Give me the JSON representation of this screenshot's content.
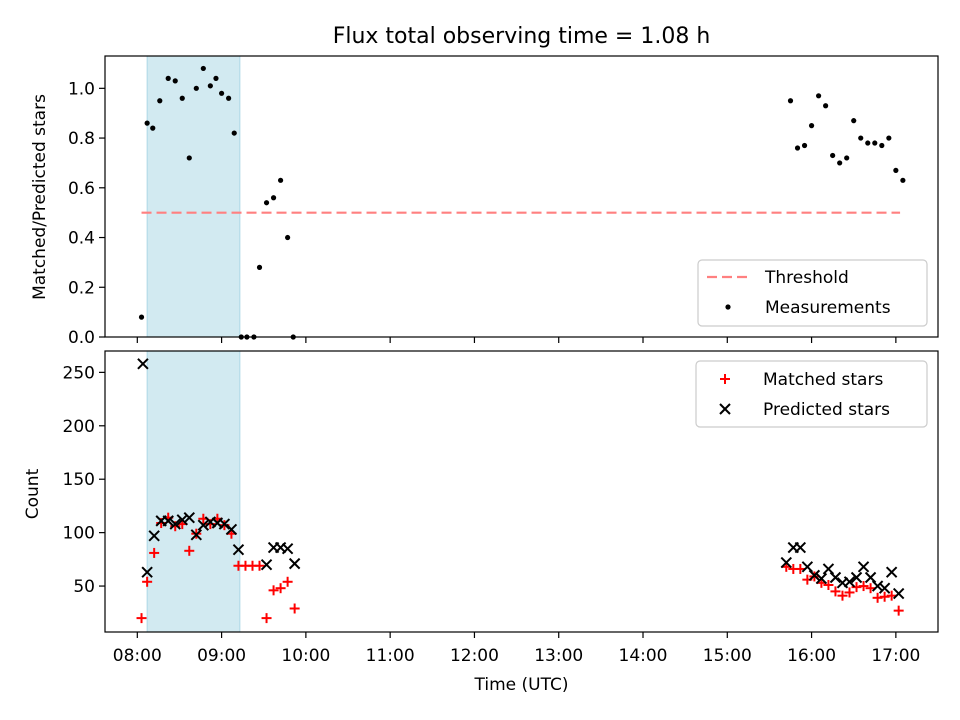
{
  "chart_data": [
    {
      "type": "scatter",
      "title": "Flux total observing time = 1.08 h",
      "ylabel": "Matched/Predicted stars",
      "xlabel": "",
      "xlim": [
        "07:37",
        "17:30"
      ],
      "ylim": [
        0,
        1.13
      ],
      "yticks": [
        0.0,
        0.2,
        0.4,
        0.6,
        0.8,
        1.0
      ],
      "ytick_labels": [
        "0.0",
        "0.2",
        "0.4",
        "0.6",
        "0.8",
        "1.0"
      ],
      "highlight_span": [
        "08:07",
        "09:13"
      ],
      "highlight_color": "#add8e6",
      "threshold": {
        "name": "Threshold",
        "value": 0.5,
        "x_range": [
          "08:03",
          "17:03"
        ],
        "color": "#ff8080"
      },
      "series": [
        {
          "name": "Measurements",
          "color": "#000000",
          "x": [
            "08:03",
            "08:07",
            "08:11",
            "08:16",
            "08:22",
            "08:27",
            "08:32",
            "08:37",
            "08:42",
            "08:47",
            "08:52",
            "08:56",
            "09:00",
            "09:05",
            "09:09",
            "09:14",
            "09:18",
            "09:23",
            "09:27",
            "09:32",
            "09:37",
            "09:42",
            "09:47",
            "09:51",
            "15:45",
            "15:50",
            "15:55",
            "16:00",
            "16:05",
            "16:10",
            "16:15",
            "16:20",
            "16:25",
            "16:30",
            "16:35",
            "16:40",
            "16:45",
            "16:50",
            "16:55",
            "17:00",
            "17:05"
          ],
          "y": [
            0.08,
            0.86,
            0.84,
            0.95,
            1.04,
            1.03,
            0.96,
            0.72,
            1.0,
            1.08,
            1.01,
            1.04,
            0.98,
            0.96,
            0.82,
            0.0,
            0.0,
            0.0,
            0.28,
            0.54,
            0.56,
            0.63,
            0.4,
            0.0,
            0.95,
            0.76,
            0.77,
            0.85,
            0.97,
            0.93,
            0.73,
            0.7,
            0.72,
            0.87,
            0.8,
            0.78,
            0.78,
            0.77,
            0.8,
            0.67,
            0.63
          ]
        }
      ]
    },
    {
      "type": "scatter",
      "title": "",
      "xlabel": "Time (UTC)",
      "ylabel": "Count",
      "xlim": [
        "07:37",
        "17:30"
      ],
      "ylim": [
        7,
        270
      ],
      "yticks": [
        50,
        100,
        150,
        200,
        250
      ],
      "ytick_labels": [
        "50",
        "100",
        "150",
        "200",
        "250"
      ],
      "xticks": [
        "08:00",
        "09:00",
        "10:00",
        "11:00",
        "12:00",
        "13:00",
        "14:00",
        "15:00",
        "16:00",
        "17:00"
      ],
      "xtick_labels": [
        "08:00",
        "09:00",
        "10:00",
        "11:00",
        "12:00",
        "13:00",
        "14:00",
        "15:00",
        "16:00",
        "17:00"
      ],
      "highlight_span": [
        "08:07",
        "09:13"
      ],
      "highlight_color": "#add8e6",
      "series": [
        {
          "name": "Matched stars",
          "marker": "+",
          "color": "#ff0000",
          "x": [
            "08:03",
            "08:07",
            "08:12",
            "08:17",
            "08:22",
            "08:27",
            "08:32",
            "08:37",
            "08:42",
            "08:47",
            "08:52",
            "08:57",
            "09:02",
            "09:07",
            "09:12",
            "09:17",
            "09:22",
            "09:27",
            "09:32",
            "09:37",
            "09:42",
            "09:47",
            "09:52",
            "15:42",
            "15:47",
            "15:52",
            "15:57",
            "16:02",
            "16:07",
            "16:12",
            "16:17",
            "16:22",
            "16:27",
            "16:32",
            "16:37",
            "16:42",
            "16:47",
            "16:52",
            "16:57",
            "17:02"
          ],
          "y": [
            20,
            54,
            81,
            109,
            114,
            106,
            108,
            83,
            99,
            113,
            108,
            113,
            107,
            99,
            69,
            69,
            69,
            69,
            20,
            46,
            48,
            54,
            29,
            68,
            66,
            66,
            56,
            59,
            53,
            51,
            45,
            41,
            44,
            49,
            50,
            48,
            39,
            40,
            41,
            27
          ]
        },
        {
          "name": "Predicted stars",
          "marker": "x",
          "color": "#000000",
          "x": [
            "08:04",
            "08:07",
            "08:12",
            "08:17",
            "08:22",
            "08:27",
            "08:32",
            "08:37",
            "08:42",
            "08:47",
            "08:52",
            "08:57",
            "09:02",
            "09:07",
            "09:12",
            "09:32",
            "09:37",
            "09:42",
            "09:47",
            "09:52",
            "15:42",
            "15:47",
            "15:52",
            "15:57",
            "16:02",
            "16:07",
            "16:12",
            "16:17",
            "16:22",
            "16:27",
            "16:32",
            "16:37",
            "16:42",
            "16:47",
            "16:52",
            "16:57",
            "17:02"
          ],
          "y": [
            258,
            63,
            97,
            111,
            111,
            108,
            112,
            114,
            98,
            107,
            110,
            109,
            108,
            103,
            84,
            70,
            86,
            86,
            85,
            71,
            72,
            86,
            86,
            68,
            60,
            57,
            66,
            58,
            53,
            54,
            58,
            68,
            58,
            50,
            48,
            63,
            43
          ]
        }
      ]
    }
  ]
}
